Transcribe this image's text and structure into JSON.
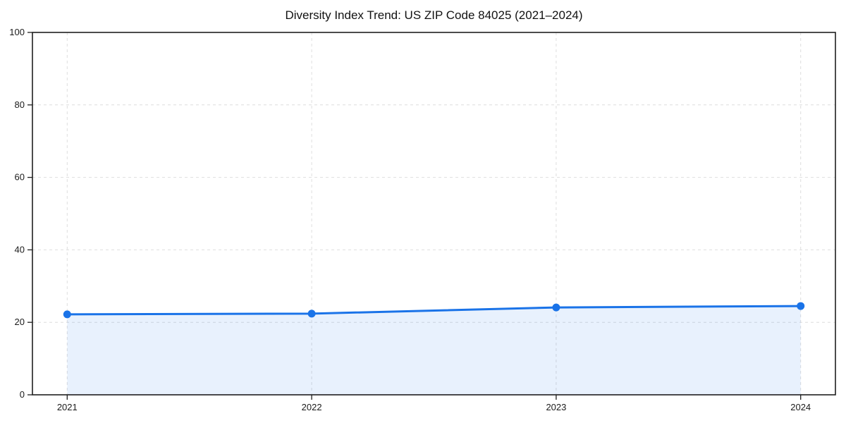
{
  "chart_data": {
    "type": "area",
    "title": "Diversity Index Trend: US ZIP Code 84025 (2021–2024)",
    "x": [
      "2021",
      "2022",
      "2023",
      "2024"
    ],
    "series": [
      {
        "name": "Diversity Index",
        "values": [
          22.2,
          22.4,
          24.1,
          24.5
        ]
      }
    ],
    "xlabel": "",
    "ylabel": "",
    "ylim": [
      0,
      100
    ],
    "yticks": [
      0,
      20,
      40,
      60,
      80,
      100
    ],
    "xticks": [
      "2021",
      "2022",
      "2023",
      "2024"
    ],
    "grid": true,
    "grid_style": "dashed",
    "legend_position": "none",
    "marker": "circle",
    "line_color": "#1a73e8",
    "fill_color": "#1a73e8",
    "fill_opacity": 0.1,
    "grid_color": "#dedede",
    "axis_color": "#1f1f1f",
    "text_color": "#1a1a1a",
    "background_color": "#ffffff"
  }
}
